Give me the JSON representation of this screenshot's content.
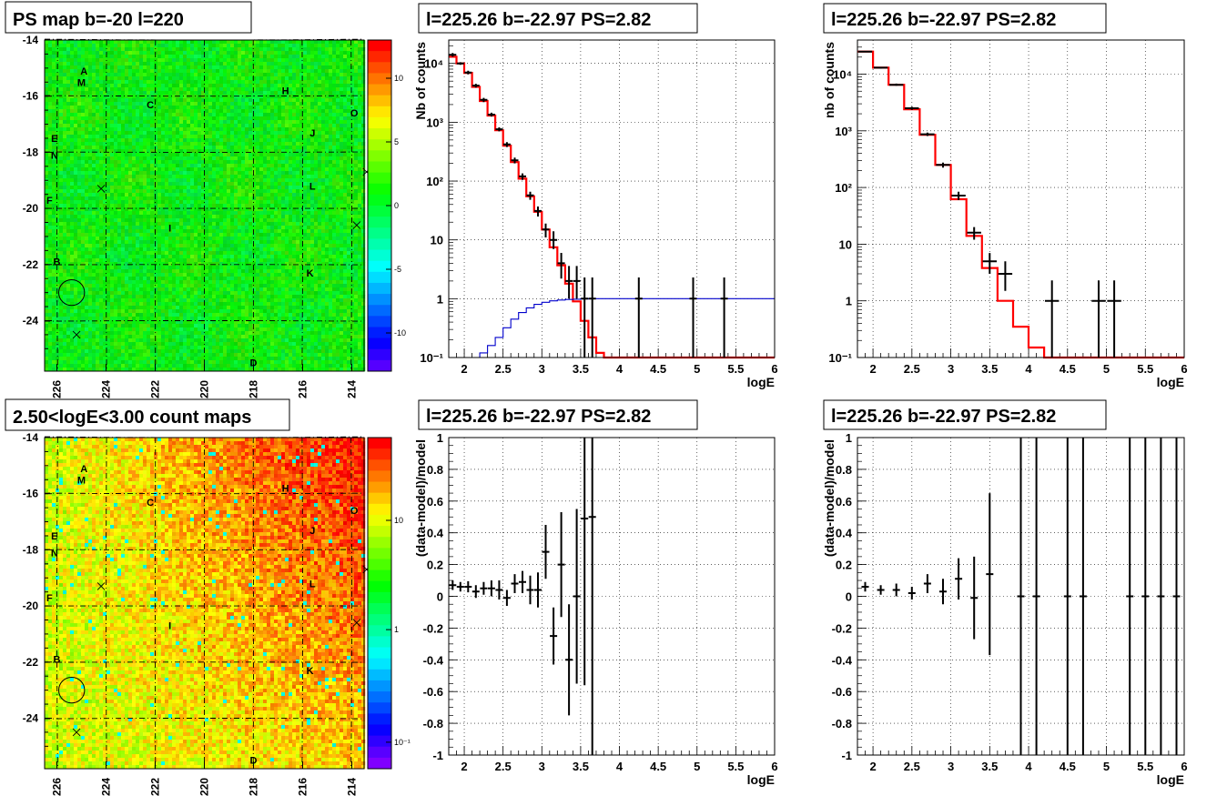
{
  "colors": {
    "model_line": "#ff0000",
    "background_line": "#0000cc",
    "data_points": "#000000"
  },
  "maps": {
    "top": {
      "title": "PS map b=-20 l=220",
      "colorbar_ticks": [
        "10",
        "5",
        "0",
        "-5",
        "-10"
      ],
      "colorbar_range": [
        -13,
        13
      ]
    },
    "bottom": {
      "title": "2.50<logE<3.00 count maps",
      "colorbar_ticks": [
        "10",
        "1",
        "10⁻¹"
      ],
      "colorbar_scale": "log"
    },
    "x_ticks": [
      "226",
      "224",
      "222",
      "220",
      "218",
      "216",
      "214"
    ],
    "x_range": [
      226.5,
      213.5
    ],
    "y_ticks": [
      "-14",
      "-16",
      "-18",
      "-20",
      "-22",
      "-24"
    ],
    "y_range": [
      -25.8,
      -14
    ],
    "sources": [
      {
        "label": "A",
        "l": 224.9,
        "b": -15.1
      },
      {
        "label": "M",
        "l": 225.0,
        "b": -15.5
      },
      {
        "label": "C",
        "l": 222.2,
        "b": -16.3
      },
      {
        "label": "H",
        "l": 216.7,
        "b": -15.8
      },
      {
        "label": "O",
        "l": 213.9,
        "b": -16.6
      },
      {
        "label": "J",
        "l": 215.6,
        "b": -17.3
      },
      {
        "label": "E",
        "l": 226.1,
        "b": -17.5
      },
      {
        "label": "N",
        "l": 226.1,
        "b": -18.1
      },
      {
        "label": "L",
        "l": 215.6,
        "b": -19.2
      },
      {
        "label": "F",
        "l": 226.3,
        "b": -19.7
      },
      {
        "label": "I",
        "l": 221.4,
        "b": -20.7
      },
      {
        "label": "B",
        "l": 226.0,
        "b": -21.9
      },
      {
        "label": "K",
        "l": 215.7,
        "b": -22.3
      },
      {
        "label": "D",
        "l": 218.0,
        "b": -25.5
      }
    ],
    "crosses": [
      {
        "l": 224.2,
        "b": -19.3
      },
      {
        "l": 213.8,
        "b": -20.6
      },
      {
        "l": 213.4,
        "b": -18.7
      },
      {
        "l": 225.2,
        "b": -24.5
      }
    ],
    "circle": {
      "l": 225.4,
      "b": -23.0,
      "radius_deg": 0.5
    }
  },
  "chart_data": [
    {
      "type": "histogram",
      "panel": "spectrum-left",
      "title": "l=225.26 b=-22.97 PS=2.82",
      "xlabel": "logE",
      "ylabel": "Nb of counts",
      "xlim": [
        1.8,
        6.0
      ],
      "ylim": [
        0.1,
        25000
      ],
      "yscale": "log",
      "x_ticks": [
        2,
        2.5,
        3,
        3.5,
        4,
        4.5,
        5,
        5.5,
        6
      ],
      "y_ticks": [
        {
          "v": 0.1,
          "t": "10⁻¹"
        },
        {
          "v": 1,
          "t": "1"
        },
        {
          "v": 10,
          "t": "10"
        },
        {
          "v": 100,
          "t": "10²"
        },
        {
          "v": 1000,
          "t": "10³"
        },
        {
          "v": 10000,
          "t": "10⁴"
        }
      ],
      "grid": true,
      "edges": [
        1.8,
        1.9,
        2.0,
        2.1,
        2.2,
        2.3,
        2.4,
        2.5,
        2.6,
        2.7,
        2.8,
        2.9,
        3.0,
        3.1,
        3.2,
        3.3,
        3.4,
        3.5,
        3.6,
        3.7,
        3.8,
        3.9,
        4.0,
        6.0
      ],
      "model": [
        13000,
        10000,
        6900,
        4000,
        2300,
        1300,
        730,
        400,
        210,
        110,
        55,
        30,
        15,
        7.5,
        3.7,
        1.8,
        0.9,
        0.42,
        0.22,
        0.12,
        0.1,
        0.1,
        0.1
      ],
      "background": {
        "x": [
          2.1,
          2.2,
          2.3,
          2.4,
          2.5,
          2.6,
          2.7,
          2.8,
          2.9,
          3.0,
          3.1,
          3.2,
          3.3,
          3.4,
          3.5,
          3.6,
          6.0
        ],
        "y": [
          0.1,
          0.12,
          0.16,
          0.22,
          0.32,
          0.45,
          0.58,
          0.7,
          0.8,
          0.87,
          0.92,
          0.95,
          0.97,
          0.98,
          0.99,
          1.0,
          1.0
        ]
      },
      "points": [
        {
          "x": 1.85,
          "y": 14000,
          "lo": 13000,
          "hi": 15000
        },
        {
          "x": 1.95,
          "y": 10000,
          "lo": 9500,
          "hi": 10500
        },
        {
          "x": 2.05,
          "y": 7000,
          "lo": 6500,
          "hi": 7500
        },
        {
          "x": 2.15,
          "y": 4200,
          "lo": 3900,
          "hi": 4500
        },
        {
          "x": 2.25,
          "y": 2400,
          "lo": 2200,
          "hi": 2600
        },
        {
          "x": 2.35,
          "y": 1350,
          "lo": 1250,
          "hi": 1450
        },
        {
          "x": 2.45,
          "y": 760,
          "lo": 700,
          "hi": 820
        },
        {
          "x": 2.55,
          "y": 420,
          "lo": 380,
          "hi": 460
        },
        {
          "x": 2.65,
          "y": 225,
          "lo": 200,
          "hi": 250
        },
        {
          "x": 2.75,
          "y": 120,
          "lo": 105,
          "hi": 135
        },
        {
          "x": 2.85,
          "y": 57,
          "lo": 48,
          "hi": 66
        },
        {
          "x": 2.95,
          "y": 31,
          "lo": 25,
          "hi": 37
        },
        {
          "x": 3.05,
          "y": 15,
          "lo": 11,
          "hi": 19
        },
        {
          "x": 3.15,
          "y": 10,
          "lo": 7,
          "hi": 14
        },
        {
          "x": 3.25,
          "y": 4,
          "lo": 2.2,
          "hi": 6
        },
        {
          "x": 3.35,
          "y": 2,
          "lo": 1.0,
          "hi": 3.6
        },
        {
          "x": 3.45,
          "y": 2,
          "lo": 1.0,
          "hi": 3.6
        },
        {
          "x": 3.55,
          "y": 1,
          "lo": 0.1,
          "hi": 2.3
        },
        {
          "x": 3.65,
          "y": 1,
          "lo": 0.1,
          "hi": 2.3
        },
        {
          "x": 4.25,
          "y": 1,
          "lo": 0.1,
          "hi": 2.3
        },
        {
          "x": 4.95,
          "y": 1,
          "lo": 0.1,
          "hi": 2.3
        },
        {
          "x": 5.35,
          "y": 1,
          "lo": 0.1,
          "hi": 2.3
        }
      ]
    },
    {
      "type": "histogram",
      "panel": "spectrum-right",
      "title": "l=225.26 b=-22.97 PS=2.82",
      "xlabel": "logE",
      "ylabel": "nb of counts",
      "xlim": [
        1.8,
        6.0
      ],
      "ylim": [
        0.1,
        40000
      ],
      "yscale": "log",
      "x_ticks": [
        2,
        2.5,
        3,
        3.5,
        4,
        4.5,
        5,
        5.5,
        6
      ],
      "y_ticks": [
        {
          "v": 0.1,
          "t": "10⁻¹"
        },
        {
          "v": 1,
          "t": "1"
        },
        {
          "v": 10,
          "t": "10"
        },
        {
          "v": 100,
          "t": "10²"
        },
        {
          "v": 1000,
          "t": "10³"
        },
        {
          "v": 10000,
          "t": "10⁴"
        }
      ],
      "grid": true,
      "edges": [
        1.8,
        2.0,
        2.2,
        2.4,
        2.6,
        2.8,
        3.0,
        3.2,
        3.4,
        3.6,
        3.8,
        4.0,
        4.2,
        6.0
      ],
      "model": [
        25000,
        13000,
        6500,
        2400,
        850,
        250,
        62,
        14,
        3.8,
        1.0,
        0.35,
        0.15,
        0.1
      ],
      "points": [
        {
          "x": 1.9,
          "y": 25000,
          "lo": 24000,
          "hi": 26000
        },
        {
          "x": 2.1,
          "y": 13000,
          "lo": 12500,
          "hi": 13500
        },
        {
          "x": 2.3,
          "y": 6500,
          "lo": 6200,
          "hi": 6800
        },
        {
          "x": 2.5,
          "y": 2500,
          "lo": 2350,
          "hi": 2650
        },
        {
          "x": 2.7,
          "y": 870,
          "lo": 810,
          "hi": 930
        },
        {
          "x": 2.9,
          "y": 250,
          "lo": 225,
          "hi": 275
        },
        {
          "x": 3.1,
          "y": 72,
          "lo": 60,
          "hi": 84
        },
        {
          "x": 3.3,
          "y": 16,
          "lo": 12,
          "hi": 20
        },
        {
          "x": 3.5,
          "y": 5,
          "lo": 3,
          "hi": 7
        },
        {
          "x": 3.7,
          "y": 3,
          "lo": 1.5,
          "hi": 5
        },
        {
          "x": 4.3,
          "y": 1,
          "lo": 0.1,
          "hi": 2.3
        },
        {
          "x": 4.9,
          "y": 1,
          "lo": 0.1,
          "hi": 2.3
        },
        {
          "x": 5.1,
          "y": 1,
          "lo": 0.1,
          "hi": 2.3
        }
      ]
    },
    {
      "type": "scatter",
      "panel": "residual-left",
      "title": "l=225.26 b=-22.97 PS=2.82",
      "xlabel": "logE",
      "ylabel": "(data-model)/model",
      "xlim": [
        1.8,
        6.0
      ],
      "ylim": [
        -1,
        1
      ],
      "x_ticks": [
        2,
        2.5,
        3,
        3.5,
        4,
        4.5,
        5,
        5.5,
        6
      ],
      "y_ticks": [
        -1,
        -0.8,
        -0.6,
        -0.4,
        -0.2,
        0,
        0.2,
        0.4,
        0.6,
        0.8,
        1
      ],
      "grid": true,
      "points": [
        {
          "x": 1.85,
          "y": 0.07,
          "e": 0.03
        },
        {
          "x": 1.95,
          "y": 0.06,
          "e": 0.03
        },
        {
          "x": 2.05,
          "y": 0.06,
          "e": 0.035
        },
        {
          "x": 2.15,
          "y": 0.03,
          "e": 0.04
        },
        {
          "x": 2.25,
          "y": 0.05,
          "e": 0.04
        },
        {
          "x": 2.35,
          "y": 0.05,
          "e": 0.05
        },
        {
          "x": 2.45,
          "y": 0.04,
          "e": 0.06
        },
        {
          "x": 2.55,
          "y": -0.01,
          "e": 0.05
        },
        {
          "x": 2.65,
          "y": 0.08,
          "e": 0.06
        },
        {
          "x": 2.75,
          "y": 0.09,
          "e": 0.07
        },
        {
          "x": 2.85,
          "y": 0.04,
          "e": 0.09
        },
        {
          "x": 2.95,
          "y": 0.04,
          "e": 0.11
        },
        {
          "x": 3.05,
          "y": 0.28,
          "e": 0.17
        },
        {
          "x": 3.15,
          "y": -0.25,
          "e": 0.18
        },
        {
          "x": 3.25,
          "y": 0.2,
          "e": 0.33
        },
        {
          "x": 3.35,
          "y": -0.4,
          "e": 0.35
        },
        {
          "x": 3.45,
          "y": 0.0,
          "e": 0.55
        },
        {
          "x": 3.55,
          "y": 0.49,
          "e": 1.05
        },
        {
          "x": 3.65,
          "y": 0.5,
          "e": 1.6
        }
      ]
    },
    {
      "type": "scatter",
      "panel": "residual-right",
      "title": "l=225.26 b=-22.97 PS=2.82",
      "xlabel": "logE",
      "ylabel": "(data-model)/model",
      "xlim": [
        1.8,
        6.0
      ],
      "ylim": [
        -1,
        1
      ],
      "x_ticks": [
        2,
        2.5,
        3,
        3.5,
        4,
        4.5,
        5,
        5.5,
        6
      ],
      "y_ticks": [
        -1,
        -0.8,
        -0.6,
        -0.4,
        -0.2,
        0,
        0.2,
        0.4,
        0.6,
        0.8,
        1
      ],
      "grid": true,
      "points": [
        {
          "x": 1.9,
          "y": 0.06,
          "e": 0.03
        },
        {
          "x": 2.1,
          "y": 0.04,
          "e": 0.03
        },
        {
          "x": 2.3,
          "y": 0.04,
          "e": 0.04
        },
        {
          "x": 2.5,
          "y": 0.02,
          "e": 0.04
        },
        {
          "x": 2.7,
          "y": 0.08,
          "e": 0.06
        },
        {
          "x": 2.9,
          "y": 0.03,
          "e": 0.08
        },
        {
          "x": 3.1,
          "y": 0.11,
          "e": 0.13
        },
        {
          "x": 3.3,
          "y": -0.01,
          "e": 0.26
        },
        {
          "x": 3.5,
          "y": 0.14,
          "e": 0.51
        },
        {
          "x": 3.9,
          "y": 0.0,
          "e": 1.5
        },
        {
          "x": 4.1,
          "y": 0.0,
          "e": 1.5
        },
        {
          "x": 4.5,
          "y": 0.0,
          "e": 1.5
        },
        {
          "x": 4.7,
          "y": 0.0,
          "e": 1.5
        },
        {
          "x": 5.3,
          "y": 0.0,
          "e": 1.5
        },
        {
          "x": 5.5,
          "y": 0.0,
          "e": 1.5
        },
        {
          "x": 5.7,
          "y": 0.0,
          "e": 1.5
        },
        {
          "x": 5.9,
          "y": 0.0,
          "e": 1.5
        }
      ]
    }
  ]
}
